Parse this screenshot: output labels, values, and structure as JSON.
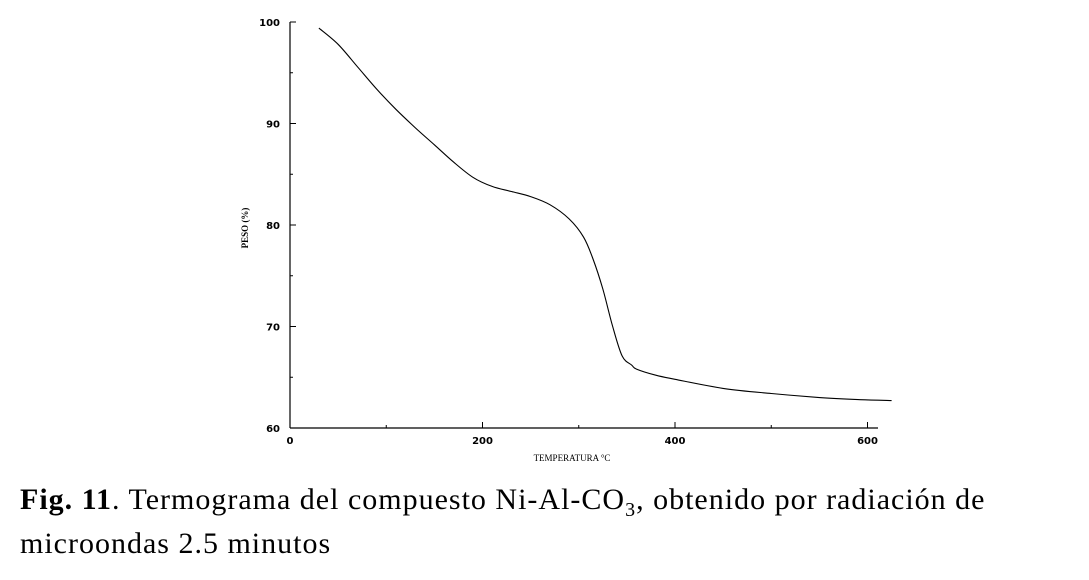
{
  "chart_data": {
    "type": "line",
    "xlabel": "TEMPERATURA °C",
    "ylabel": "PESO (%)",
    "xlim": [
      0,
      620
    ],
    "ylim": [
      60,
      100
    ],
    "x_ticks": [
      0,
      200,
      400,
      600
    ],
    "y_ticks": [
      60,
      70,
      80,
      90,
      100
    ],
    "grid": false,
    "series": [
      {
        "x": [
          30,
          50,
          70,
          90,
          110,
          130,
          150,
          170,
          190,
          210,
          230,
          250,
          270,
          290,
          305,
          315,
          325,
          335,
          345,
          355,
          360,
          380,
          400,
          450,
          500,
          550,
          590,
          625
        ],
        "y": [
          99.4,
          97.8,
          95.6,
          93.4,
          91.4,
          89.6,
          87.9,
          86.2,
          84.7,
          83.8,
          83.3,
          82.8,
          82.0,
          80.6,
          78.8,
          76.6,
          73.7,
          70.1,
          67.1,
          66.2,
          65.8,
          65.2,
          64.8,
          63.9,
          63.4,
          63.0,
          62.8,
          62.7
        ]
      }
    ]
  },
  "caption": {
    "label": "Fig. 11",
    "text_before_subscript": ". Termograma del compuesto Ni-Al-CO",
    "subscript": "3",
    "text_after_subscript": ", obtenido por radiación de microondas 2.5 minutos"
  }
}
